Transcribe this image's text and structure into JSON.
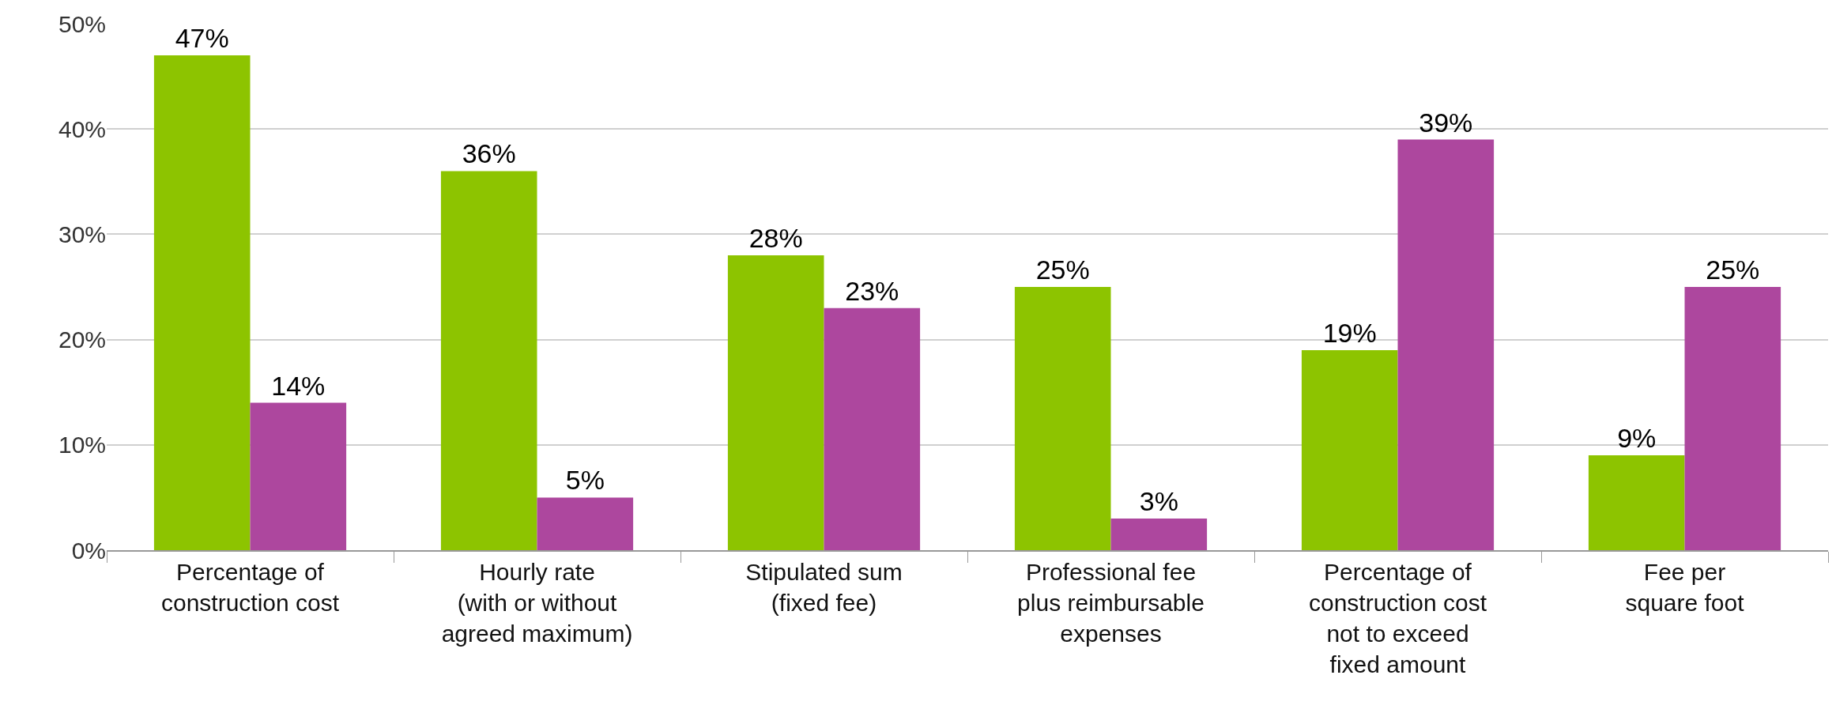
{
  "chart_data": {
    "type": "bar",
    "categories": [
      "Percentage of\nconstruction cost",
      "Hourly rate\n(with or without\nagreed maximum)",
      "Stipulated sum\n(fixed fee)",
      "Professional fee\nplus reimbursable\nexpenses",
      "Percentage of\nconstruction cost\nnot to exceed\nfixed amount",
      "Fee per\nsquare foot"
    ],
    "series": [
      {
        "color": "#8dc400",
        "values": [
          47,
          36,
          28,
          25,
          19,
          9
        ],
        "value_labels": [
          "47%",
          "36%",
          "28%",
          "25%",
          "19%",
          "9%"
        ]
      },
      {
        "color": "#ad479e",
        "values": [
          14,
          5,
          23,
          3,
          39,
          25
        ],
        "value_labels": [
          "14%",
          "5%",
          "23%",
          "3%",
          "39%",
          "25%"
        ]
      }
    ],
    "ylim": [
      0,
      50
    ],
    "yticks": [
      {
        "value": 0,
        "label": "0%"
      },
      {
        "value": 10,
        "label": "10%"
      },
      {
        "value": 20,
        "label": "20%"
      },
      {
        "value": 30,
        "label": "30%"
      },
      {
        "value": 40,
        "label": "40%"
      },
      {
        "value": 50,
        "label": "50%"
      }
    ],
    "grid": "y",
    "legend": false
  }
}
